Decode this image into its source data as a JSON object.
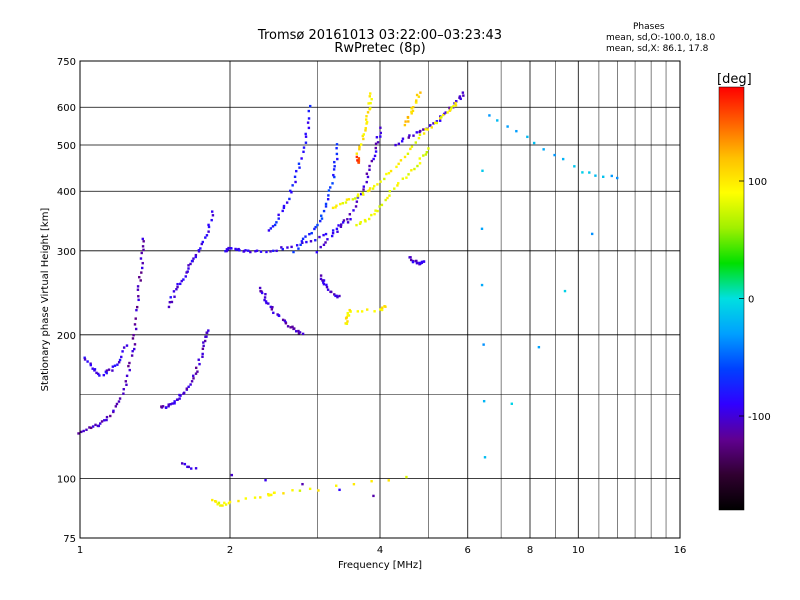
{
  "figure": {
    "title_line1": "Tromsø 20161013 03:22:00–03:23:43",
    "title_line2": "RwPretec (8p)",
    "phases_heading": "Phases",
    "phases_o": "mean, sd,O:-100.0, 18.0",
    "phases_x": "mean, sd,X:  86.1, 17.8"
  },
  "colorbar": {
    "label": "[deg]",
    "ticks": [
      {
        "value": 100,
        "label": "100"
      },
      {
        "value": 0,
        "label": "0"
      },
      {
        "value": -100,
        "label": "-100"
      }
    ],
    "range": [
      -180,
      180
    ],
    "colormap": [
      "#000000",
      "#300030",
      "#600090",
      "#3000ff",
      "#0040ff",
      "#00a0ff",
      "#00e0e0",
      "#00e000",
      "#a0f000",
      "#ffff00",
      "#ffc000",
      "#ff6000",
      "#ff0000"
    ]
  },
  "chart_data": {
    "type": "scatter",
    "title": "Tromsø 20161013 03:22:00–03:23:43",
    "subtitle": "RwPretec (8p)",
    "xlabel": "Frequency [MHz]",
    "ylabel": "Stationary phase Virtual Height [km]",
    "xscale": "log",
    "yscale": "log",
    "xlim": [
      1,
      16
    ],
    "ylim": [
      75,
      750
    ],
    "grid": true,
    "x_ticks": [
      {
        "v": 1,
        "l": "1"
      },
      {
        "v": 2,
        "l": "2"
      },
      {
        "v": 4,
        "l": "4"
      },
      {
        "v": 6,
        "l": "6"
      },
      {
        "v": 8,
        "l": "8"
      },
      {
        "v": 10,
        "l": "10"
      },
      {
        "v": 16,
        "l": "16"
      }
    ],
    "x_minor": [
      3,
      5,
      7,
      9,
      11,
      12,
      13,
      14,
      15
    ],
    "y_ticks": [
      {
        "v": 75,
        "l": "75"
      },
      {
        "v": 100,
        "l": "100"
      },
      {
        "v": 200,
        "l": "200"
      },
      {
        "v": 300,
        "l": "300"
      },
      {
        "v": 400,
        "l": "400"
      },
      {
        "v": 500,
        "l": "500"
      },
      {
        "v": 600,
        "l": "600"
      },
      {
        "v": 750,
        "l": "750"
      }
    ],
    "y_minor": [
      150
    ],
    "color_value": "phase [deg]",
    "traces": [
      {
        "name": "O-low-1",
        "phase": -110,
        "pts": [
          [
            1.0,
            125
          ],
          [
            1.05,
            128
          ],
          [
            1.1,
            130
          ],
          [
            1.15,
            135
          ],
          [
            1.2,
            145
          ],
          [
            1.24,
            160
          ],
          [
            1.27,
            180
          ],
          [
            1.29,
            200
          ],
          [
            1.3,
            230
          ],
          [
            1.32,
            260
          ],
          [
            1.33,
            290
          ],
          [
            1.34,
            320
          ]
        ]
      },
      {
        "name": "O-low-1b",
        "phase": -95,
        "pts": [
          [
            1.02,
            180
          ],
          [
            1.06,
            170
          ],
          [
            1.1,
            165
          ],
          [
            1.15,
            168
          ],
          [
            1.2,
            175
          ],
          [
            1.24,
            190
          ]
        ]
      },
      {
        "name": "O-low-2",
        "phase": -105,
        "pts": [
          [
            1.45,
            140
          ],
          [
            1.5,
            142
          ],
          [
            1.55,
            145
          ],
          [
            1.6,
            150
          ],
          [
            1.65,
            155
          ],
          [
            1.7,
            165
          ],
          [
            1.75,
            180
          ],
          [
            1.78,
            195
          ],
          [
            1.8,
            205
          ]
        ]
      },
      {
        "name": "O-low-2b",
        "phase": -95,
        "pts": [
          [
            1.5,
            230
          ],
          [
            1.55,
            245
          ],
          [
            1.6,
            260
          ],
          [
            1.65,
            275
          ],
          [
            1.7,
            290
          ],
          [
            1.75,
            305
          ],
          [
            1.8,
            330
          ],
          [
            1.85,
            360
          ]
        ]
      },
      {
        "name": "F1-cusp",
        "phase": -90,
        "pts": [
          [
            1.95,
            300
          ],
          [
            2.0,
            305
          ],
          [
            2.1,
            300
          ],
          [
            2.2,
            298
          ],
          [
            2.4,
            300
          ],
          [
            2.6,
            305
          ],
          [
            2.9,
            315
          ],
          [
            3.2,
            330
          ],
          [
            3.5,
            350
          ]
        ]
      },
      {
        "name": "F2-O-1",
        "phase": -80,
        "pts": [
          [
            2.4,
            330
          ],
          [
            2.5,
            350
          ],
          [
            2.6,
            380
          ],
          [
            2.7,
            420
          ],
          [
            2.78,
            470
          ],
          [
            2.85,
            530
          ],
          [
            2.9,
            600
          ]
        ]
      },
      {
        "name": "F2-O-2",
        "phase": -70,
        "pts": [
          [
            2.7,
            300
          ],
          [
            2.85,
            320
          ],
          [
            3.0,
            340
          ],
          [
            3.1,
            370
          ],
          [
            3.2,
            410
          ],
          [
            3.25,
            450
          ],
          [
            3.3,
            500
          ]
        ]
      },
      {
        "name": "F2-O-3",
        "phase": -100,
        "pts": [
          [
            3.0,
            300
          ],
          [
            3.2,
            320
          ],
          [
            3.4,
            345
          ],
          [
            3.6,
            380
          ],
          [
            3.75,
            420
          ],
          [
            3.85,
            460
          ],
          [
            3.95,
            500
          ],
          [
            4.0,
            540
          ]
        ]
      },
      {
        "name": "F-high-O",
        "phase": -100,
        "pts": [
          [
            4.3,
            500
          ],
          [
            4.6,
            520
          ],
          [
            4.9,
            540
          ],
          [
            5.2,
            560
          ],
          [
            5.5,
            590
          ],
          [
            5.7,
            620
          ],
          [
            5.9,
            640
          ]
        ]
      },
      {
        "name": "X-mode-1",
        "phase": 90,
        "pts": [
          [
            3.2,
            370
          ],
          [
            3.4,
            380
          ],
          [
            3.6,
            390
          ],
          [
            3.8,
            400
          ],
          [
            4.0,
            420
          ],
          [
            4.3,
            450
          ],
          [
            4.6,
            490
          ],
          [
            4.9,
            530
          ],
          [
            5.2,
            560
          ],
          [
            5.5,
            590
          ],
          [
            5.7,
            610
          ]
        ]
      },
      {
        "name": "X-mode-2",
        "phase": 85,
        "pts": [
          [
            3.6,
            340
          ],
          [
            3.8,
            350
          ],
          [
            4.0,
            370
          ],
          [
            4.2,
            400
          ],
          [
            4.5,
            430
          ],
          [
            4.8,
            460
          ],
          [
            5.0,
            490
          ]
        ]
      },
      {
        "name": "X-mode-3",
        "phase": 100,
        "pts": [
          [
            3.6,
            480
          ],
          [
            3.7,
            520
          ],
          [
            3.75,
            560
          ],
          [
            3.8,
            600
          ],
          [
            3.85,
            640
          ]
        ]
      },
      {
        "name": "X-mode-4",
        "phase": 110,
        "pts": [
          [
            4.5,
            550
          ],
          [
            4.6,
            580
          ],
          [
            4.7,
            610
          ],
          [
            4.8,
            640
          ]
        ]
      },
      {
        "name": "mid-1",
        "phase": -105,
        "pts": [
          [
            2.3,
            250
          ],
          [
            2.35,
            240
          ],
          [
            2.4,
            230
          ],
          [
            2.5,
            220
          ],
          [
            2.6,
            210
          ],
          [
            2.7,
            205
          ],
          [
            2.8,
            200
          ]
        ]
      },
      {
        "name": "mid-2",
        "phase": -100,
        "pts": [
          [
            3.05,
            265
          ],
          [
            3.1,
            255
          ],
          [
            3.2,
            245
          ],
          [
            3.3,
            240
          ]
        ]
      },
      {
        "name": "mid-3",
        "phase": -100,
        "pts": [
          [
            4.6,
            290
          ],
          [
            4.7,
            285
          ],
          [
            4.8,
            280
          ],
          [
            4.9,
            285
          ]
        ]
      },
      {
        "name": "mid-4",
        "phase": 95,
        "pts": [
          [
            3.4,
            210
          ],
          [
            3.45,
            220
          ],
          [
            3.5,
            225
          ],
          [
            4.0,
            225
          ],
          [
            4.1,
            230
          ]
        ]
      },
      {
        "name": "red",
        "phase": 160,
        "pts": [
          [
            3.6,
            470
          ],
          [
            3.62,
            460
          ]
        ]
      },
      {
        "name": "lower-O",
        "phase": -100,
        "pts": [
          [
            1.6,
            107
          ],
          [
            1.7,
            105
          ],
          [
            3.9,
            92
          ]
        ]
      },
      {
        "name": "lower-X",
        "phase": 90,
        "pts": [
          [
            1.85,
            90
          ],
          [
            1.9,
            88
          ],
          [
            2.0,
            89
          ],
          [
            2.4,
            92
          ],
          [
            2.45,
            93
          ],
          [
            3.0,
            95
          ],
          [
            4.5,
            100
          ]
        ]
      },
      {
        "name": "scatter",
        "phase": -20,
        "pts": [
          [
            6.6,
            580
          ],
          [
            8.2,
            505
          ],
          [
            10.2,
            440
          ],
          [
            12.0,
            425
          ],
          [
            6.5,
            110
          ],
          [
            6.4,
            440
          ]
        ]
      }
    ]
  }
}
